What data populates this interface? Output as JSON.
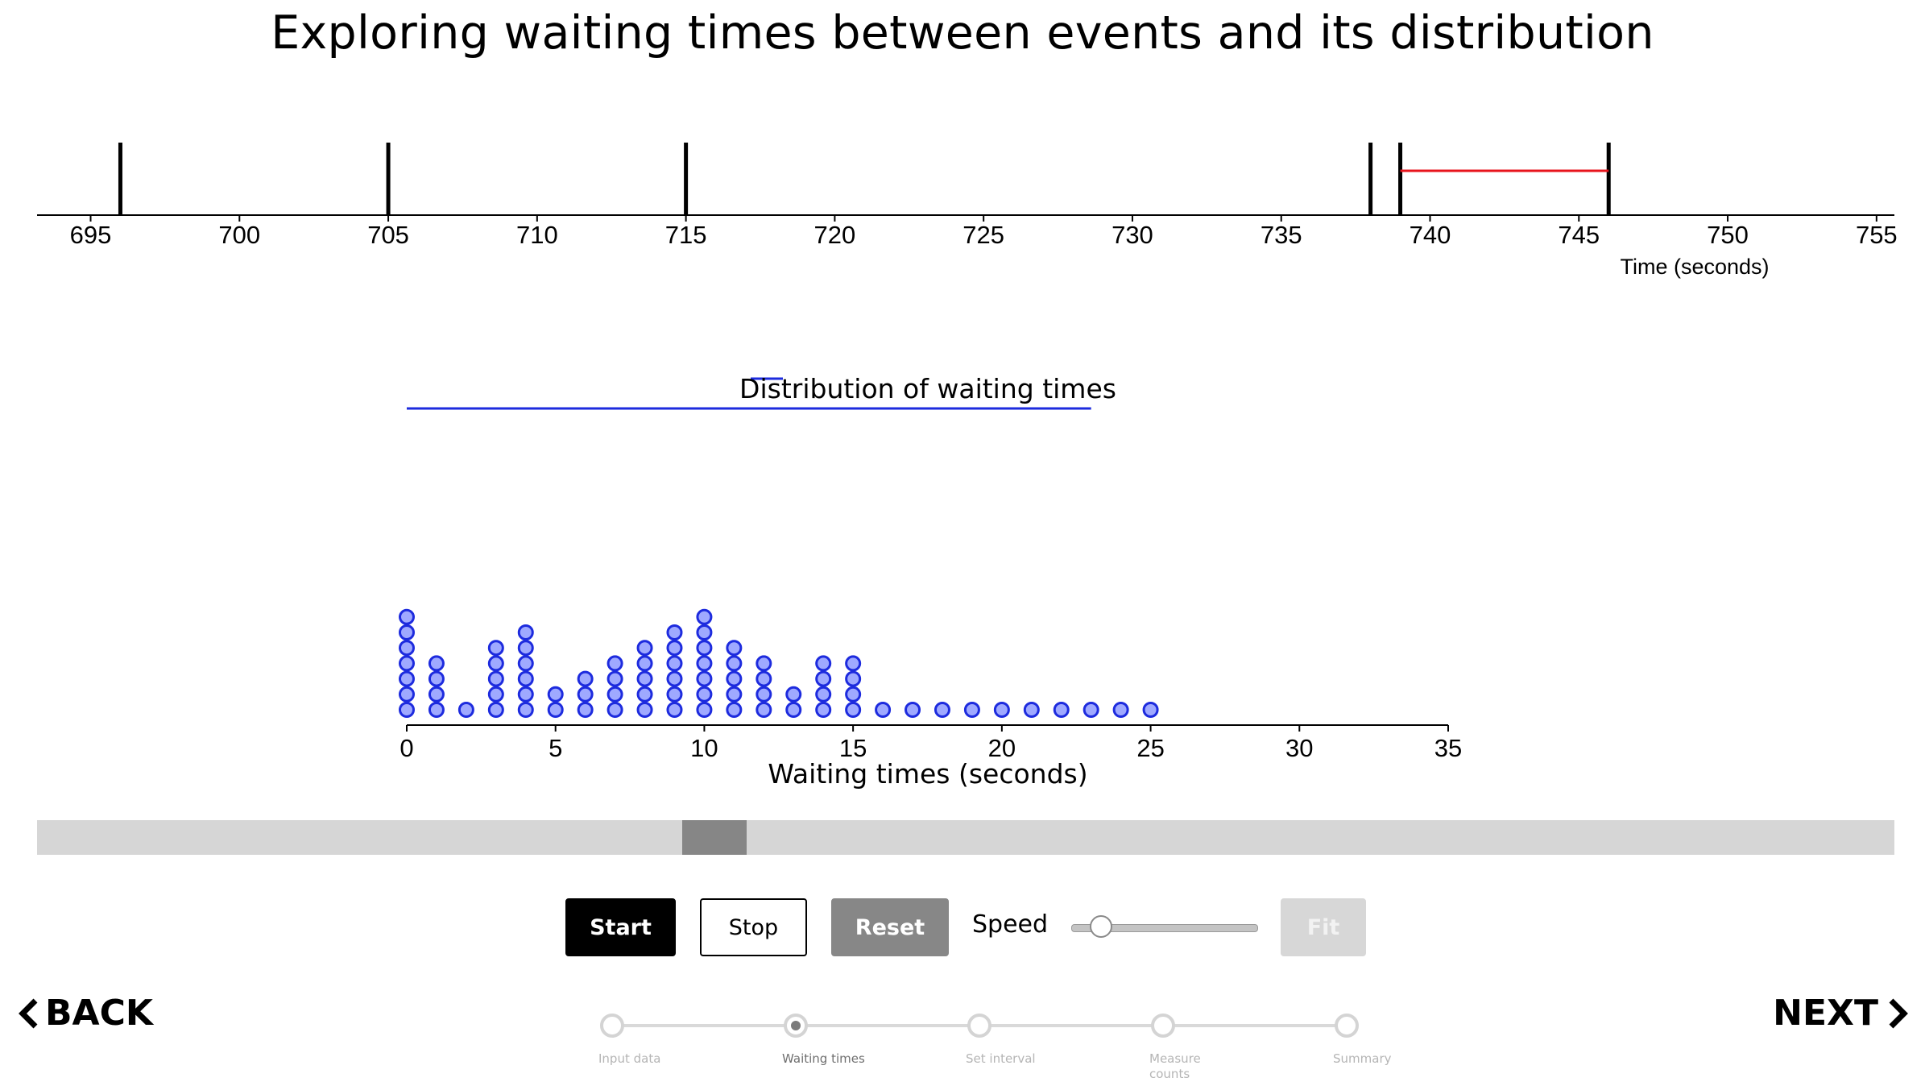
{
  "page": {
    "title": "Exploring waiting times between events and its distribution"
  },
  "timeline": {
    "ticks": [
      "695",
      "700",
      "705",
      "710",
      "715",
      "720",
      "725",
      "730",
      "735",
      "740",
      "745",
      "750",
      "755"
    ],
    "xlabel": "Time (seconds)",
    "domain": [
      693.2,
      755.6
    ],
    "events": [
      696,
      705,
      715,
      738,
      739,
      746
    ],
    "highlight_interval": [
      739,
      746
    ],
    "event_color": "#000000",
    "highlight_color": "#e8141c"
  },
  "chart_data": {
    "type": "scatter",
    "title": "Distribution of waiting times",
    "xlabel": "Waiting times (seconds)",
    "xlim": [
      0,
      35
    ],
    "x_ticks": [
      "0",
      "5",
      "10",
      "15",
      "20",
      "25",
      "30",
      "35"
    ],
    "counts": [
      {
        "x": 0,
        "count": 7
      },
      {
        "x": 1,
        "count": 4
      },
      {
        "x": 2,
        "count": 1
      },
      {
        "x": 3,
        "count": 5
      },
      {
        "x": 4,
        "count": 6
      },
      {
        "x": 5,
        "count": 2
      },
      {
        "x": 6,
        "count": 3
      },
      {
        "x": 7,
        "count": 4
      },
      {
        "x": 8,
        "count": 5
      },
      {
        "x": 9,
        "count": 6
      },
      {
        "x": 10,
        "count": 7
      },
      {
        "x": 11,
        "count": 5
      },
      {
        "x": 12,
        "count": 4
      },
      {
        "x": 13,
        "count": 2
      },
      {
        "x": 14,
        "count": 4
      },
      {
        "x": 15,
        "count": 4
      },
      {
        "x": 16,
        "count": 1
      },
      {
        "x": 17,
        "count": 1
      },
      {
        "x": 18,
        "count": 1
      },
      {
        "x": 19,
        "count": 1
      },
      {
        "x": 20,
        "count": 1
      },
      {
        "x": 21,
        "count": 1
      },
      {
        "x": 22,
        "count": 1
      },
      {
        "x": 23,
        "count": 1
      },
      {
        "x": 24,
        "count": 1
      },
      {
        "x": 25,
        "count": 1
      }
    ],
    "mean_line_range": [
      0,
      23
    ],
    "point_fill": "#9fa9ff",
    "point_stroke": "#1d2bde",
    "line_color": "#1d2bde"
  },
  "controls": {
    "start_label": "Start",
    "stop_label": "Stop",
    "reset_label": "Reset",
    "speed_label": "Speed",
    "speed_value": 0.1,
    "fit_label": "Fit",
    "scroll_position": 0.36
  },
  "nav": {
    "back_label": "BACK",
    "next_label": "NEXT",
    "steps": [
      {
        "label": "Input data",
        "active": false
      },
      {
        "label": "Waiting times",
        "active": true
      },
      {
        "label": "Set interval",
        "active": false
      },
      {
        "label": "Measure counts",
        "active": false
      },
      {
        "label": "Summary",
        "active": false
      }
    ]
  }
}
